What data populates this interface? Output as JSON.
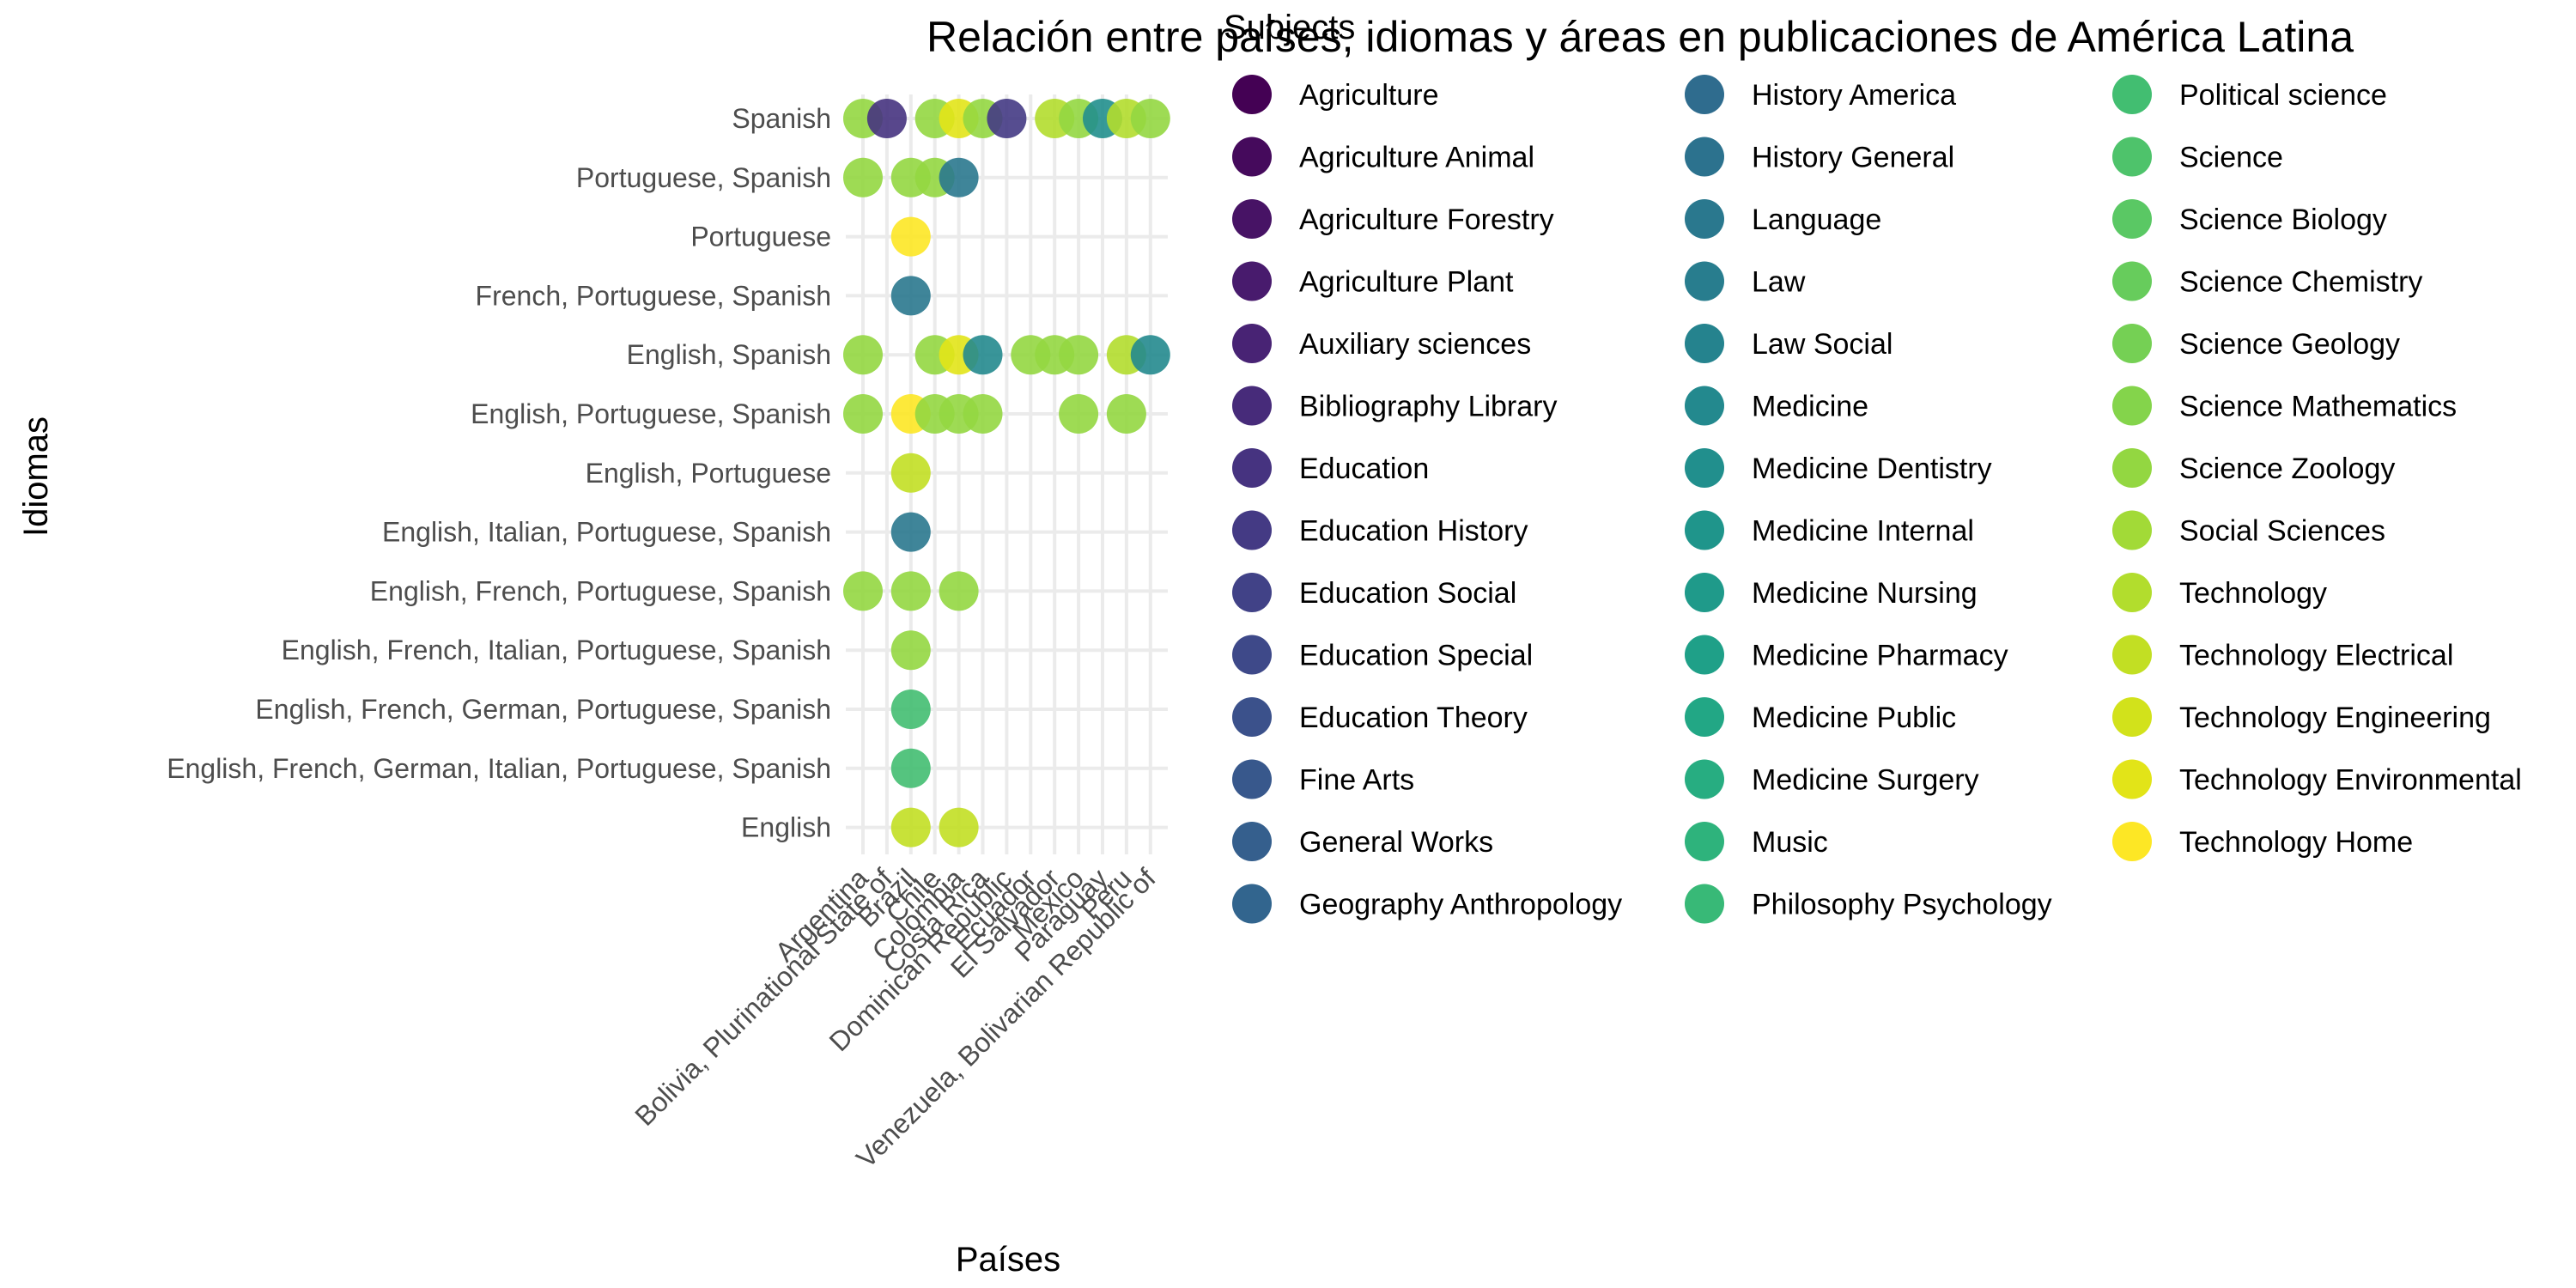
{
  "chart_data": {
    "type": "scatter",
    "title": "Relación entre países, idiomas y áreas en publicaciones de América Latina",
    "xlabel": "Países",
    "ylabel": "Idiomas",
    "grid": true,
    "legend_position": "right",
    "x_categories": [
      "Argentina",
      "Bolivia, Plurinational State of",
      "Brazil",
      "Chile",
      "Colombia",
      "Costa Rica",
      "Dominican Republic",
      "Ecuador",
      "El Salvador",
      "Mexico",
      "Paraguay",
      "Peru",
      "Venezuela, Bolivarian Republic of"
    ],
    "y_categories": [
      "Spanish",
      "Portuguese, Spanish",
      "Portuguese",
      "French, Portuguese, Spanish",
      "English, Spanish",
      "English, Portuguese, Spanish",
      "English, Portuguese",
      "English, Italian, Portuguese, Spanish",
      "English, French, Portuguese, Spanish",
      "English, French, Italian, Portuguese, Spanish",
      "English, French, German, Portuguese, Spanish",
      "English, French, German, Italian, Portuguese, Spanish",
      "English"
    ],
    "legend_title": "Subjects",
    "legend_items": [
      {
        "label": "Agriculture",
        "color": "#440154"
      },
      {
        "label": "Agriculture Animal",
        "color": "#450a5c"
      },
      {
        "label": "Agriculture Forestry",
        "color": "#471365"
      },
      {
        "label": "Agriculture Plant",
        "color": "#481b6d"
      },
      {
        "label": "Auxiliary sciences",
        "color": "#482374"
      },
      {
        "label": "Bibliography Library",
        "color": "#472b7a"
      },
      {
        "label": "Education",
        "color": "#463380"
      },
      {
        "label": "Education History",
        "color": "#443a84"
      },
      {
        "label": "Education Social",
        "color": "#414287"
      },
      {
        "label": "Education Special",
        "color": "#3e4989"
      },
      {
        "label": "Education Theory",
        "color": "#3b518b"
      },
      {
        "label": "Fine Arts",
        "color": "#38588c"
      },
      {
        "label": "General Works",
        "color": "#355f8d"
      },
      {
        "label": "Geography Anthropology",
        "color": "#32658e"
      },
      {
        "label": "History America",
        "color": "#2f6c8e"
      },
      {
        "label": "History General",
        "color": "#2c728e"
      },
      {
        "label": "Language",
        "color": "#2a788e"
      },
      {
        "label": "Law",
        "color": "#287d8e"
      },
      {
        "label": "Law Social",
        "color": "#25838e"
      },
      {
        "label": "Medicine",
        "color": "#23898e"
      },
      {
        "label": "Medicine Dentistry",
        "color": "#218f8d"
      },
      {
        "label": "Medicine Internal",
        "color": "#1f958b"
      },
      {
        "label": "Medicine Nursing",
        "color": "#1f9a8a"
      },
      {
        "label": "Medicine Pharmacy",
        "color": "#1fa088"
      },
      {
        "label": "Medicine Public",
        "color": "#22a785"
      },
      {
        "label": "Medicine Surgery",
        "color": "#27ad81"
      },
      {
        "label": "Music",
        "color": "#2eb37c"
      },
      {
        "label": "Philosophy Psychology",
        "color": "#38b977"
      },
      {
        "label": "Political science",
        "color": "#42be71"
      },
      {
        "label": "Science",
        "color": "#4ec36b"
      },
      {
        "label": "Science Biology",
        "color": "#5ac864"
      },
      {
        "label": "Science Chemistry",
        "color": "#67cc5c"
      },
      {
        "label": "Science Geology",
        "color": "#75d054"
      },
      {
        "label": "Science Mathematics",
        "color": "#84d44b"
      },
      {
        "label": "Science Zoology",
        "color": "#93d741"
      },
      {
        "label": "Social Sciences",
        "color": "#a2da37"
      },
      {
        "label": "Technology",
        "color": "#b2dd2d"
      },
      {
        "label": "Technology Electrical",
        "color": "#c2df23"
      },
      {
        "label": "Technology Engineering",
        "color": "#d2e21b"
      },
      {
        "label": "Technology Environmental",
        "color": "#e2e418"
      },
      {
        "label": "Technology Home",
        "color": "#fde725"
      }
    ],
    "points": [
      {
        "x": "Argentina",
        "y": "Spanish",
        "subject": "Science Zoology"
      },
      {
        "x": "Bolivia, Plurinational State of",
        "y": "Spanish",
        "subject": "Education"
      },
      {
        "x": "Chile",
        "y": "Spanish",
        "subject": "Science Zoology"
      },
      {
        "x": "Colombia",
        "y": "Spanish",
        "subject": "Technology Environmental"
      },
      {
        "x": "Costa Rica",
        "y": "Spanish",
        "subject": "Science Zoology"
      },
      {
        "x": "Dominican Republic",
        "y": "Spanish",
        "subject": "Education History"
      },
      {
        "x": "El Salvador",
        "y": "Spanish",
        "subject": "Technology"
      },
      {
        "x": "Mexico",
        "y": "Spanish",
        "subject": "Science Zoology"
      },
      {
        "x": "Paraguay",
        "y": "Spanish",
        "subject": "Medicine Dentistry"
      },
      {
        "x": "Peru",
        "y": "Spanish",
        "subject": "Technology"
      },
      {
        "x": "Venezuela, Bolivarian Republic of",
        "y": "Spanish",
        "subject": "Science Zoology"
      },
      {
        "x": "Argentina",
        "y": "Portuguese, Spanish",
        "subject": "Science Zoology"
      },
      {
        "x": "Brazil",
        "y": "Portuguese, Spanish",
        "subject": "Science Zoology"
      },
      {
        "x": "Chile",
        "y": "Portuguese, Spanish",
        "subject": "Science Zoology"
      },
      {
        "x": "Colombia",
        "y": "Portuguese, Spanish",
        "subject": "Language"
      },
      {
        "x": "Brazil",
        "y": "Portuguese",
        "subject": "Technology Home"
      },
      {
        "x": "Brazil",
        "y": "French, Portuguese, Spanish",
        "subject": "Language"
      },
      {
        "x": "Argentina",
        "y": "English, Spanish",
        "subject": "Science Zoology"
      },
      {
        "x": "Chile",
        "y": "English, Spanish",
        "subject": "Science Zoology"
      },
      {
        "x": "Colombia",
        "y": "English, Spanish",
        "subject": "Technology Environmental"
      },
      {
        "x": "Costa Rica",
        "y": "English, Spanish",
        "subject": "Medicine"
      },
      {
        "x": "El Salvador",
        "y": "English, Spanish",
        "subject": "Science Zoology"
      },
      {
        "x": "Ecuador",
        "y": "English, Spanish",
        "subject": "Science Zoology"
      },
      {
        "x": "Mexico",
        "y": "English, Spanish",
        "subject": "Science Zoology"
      },
      {
        "x": "Peru",
        "y": "English, Spanish",
        "subject": "Technology"
      },
      {
        "x": "Venezuela, Bolivarian Republic of",
        "y": "English, Spanish",
        "subject": "Medicine"
      },
      {
        "x": "Argentina",
        "y": "English, Portuguese, Spanish",
        "subject": "Science Zoology"
      },
      {
        "x": "Brazil",
        "y": "English, Portuguese, Spanish",
        "subject": "Technology Home"
      },
      {
        "x": "Chile",
        "y": "English, Portuguese, Spanish",
        "subject": "Science Zoology"
      },
      {
        "x": "Colombia",
        "y": "English, Portuguese, Spanish",
        "subject": "Science Zoology"
      },
      {
        "x": "Costa Rica",
        "y": "English, Portuguese, Spanish",
        "subject": "Science Zoology"
      },
      {
        "x": "Mexico",
        "y": "English, Portuguese, Spanish",
        "subject": "Science Zoology"
      },
      {
        "x": "Peru",
        "y": "English, Portuguese, Spanish",
        "subject": "Science Zoology"
      },
      {
        "x": "Brazil",
        "y": "English, Portuguese",
        "subject": "Technology Electrical"
      },
      {
        "x": "Brazil",
        "y": "English, Italian, Portuguese, Spanish",
        "subject": "Language"
      },
      {
        "x": "Argentina",
        "y": "English, French, Portuguese, Spanish",
        "subject": "Science Zoology"
      },
      {
        "x": "Brazil",
        "y": "English, French, Portuguese, Spanish",
        "subject": "Science Zoology"
      },
      {
        "x": "Colombia",
        "y": "English, French, Portuguese, Spanish",
        "subject": "Science Zoology"
      },
      {
        "x": "Brazil",
        "y": "English, French, Italian, Portuguese, Spanish",
        "subject": "Science Zoology"
      },
      {
        "x": "Brazil",
        "y": "English, French, German, Portuguese, Spanish",
        "subject": "Political science"
      },
      {
        "x": "Brazil",
        "y": "English, French, German, Italian, Portuguese, Spanish",
        "subject": "Political science"
      },
      {
        "x": "Brazil",
        "y": "English",
        "subject": "Technology Electrical"
      },
      {
        "x": "Colombia",
        "y": "English",
        "subject": "Technology Electrical"
      }
    ]
  }
}
